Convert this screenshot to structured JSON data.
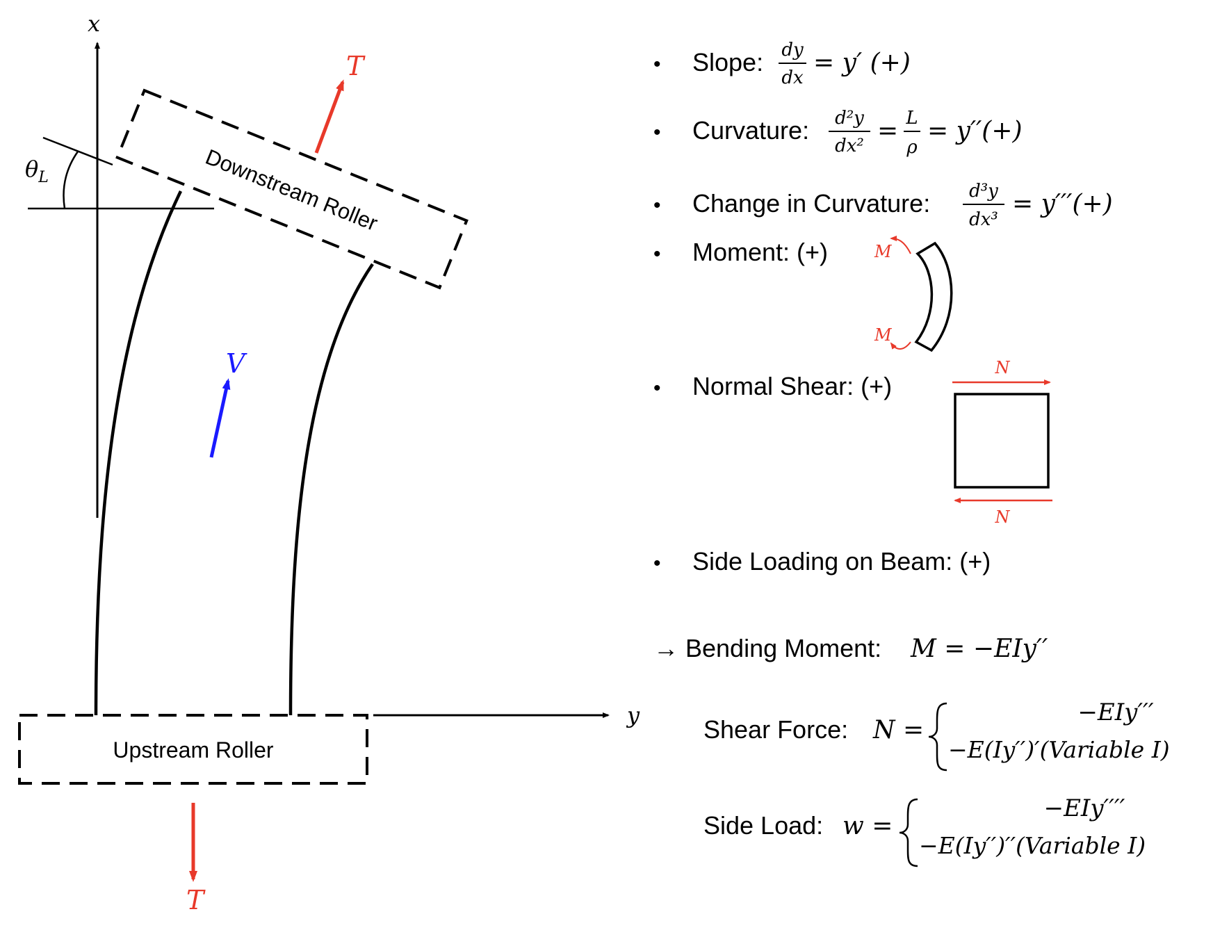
{
  "diagram": {
    "axes": {
      "x_label": "x",
      "y_label": "y",
      "angle_label": "θ",
      "angle_subscript": "L"
    },
    "rollers": {
      "downstream_label": "Downstream Roller",
      "upstream_label": "Upstream Roller"
    },
    "forces": {
      "tension_top": "T",
      "tension_bottom": "T",
      "shear": "V"
    },
    "colors": {
      "tension": "#e8392a",
      "shear": "#1a1aff",
      "line": "#000000"
    }
  },
  "conventions": {
    "bullet": "•",
    "slope": {
      "label": "Slope: ",
      "num": "dy",
      "den": "dx",
      "rhs": "= y′ (+)"
    },
    "curvature": {
      "label": "Curvature: ",
      "num": "d²y",
      "den": "dx²",
      "eq1": "=",
      "num2": "L",
      "den2": "ρ",
      "rhs": "= y′′(+)"
    },
    "change_curvature": {
      "label": "Change in Curvature: ",
      "num": "d³y",
      "den": "dx³",
      "rhs": "= y′′′(+)"
    },
    "moment": {
      "label": "Moment: (+)",
      "m_top": "M",
      "m_bottom": "M"
    },
    "normal_shear": {
      "label": "Normal Shear: (+)",
      "n_top": "N",
      "n_bottom": "N"
    },
    "side_loading": {
      "label": "Side Loading on Beam: (+)"
    }
  },
  "relations": {
    "bending_arrow": "→ Bending Moment: ",
    "bending_eq": "M = −EIy′′",
    "shear_label": "Shear Force: ",
    "shear_lhs": "N =",
    "shear_case1": "−EIy′′′",
    "shear_case2": "−E(Iy′′)′(Variable I)",
    "side_label": "Side Load: ",
    "side_lhs": "w =",
    "side_case1": "−EIy′′′′",
    "side_case2": "−E(Iy′′)′′(Variable I)"
  }
}
